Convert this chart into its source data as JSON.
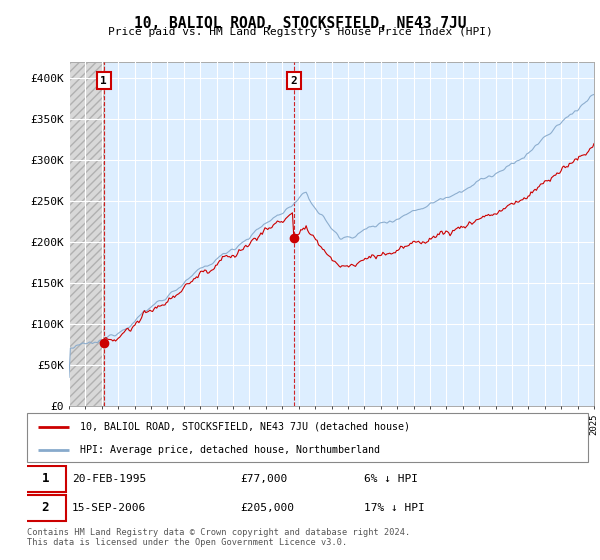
{
  "title": "10, BALIOL ROAD, STOCKSFIELD, NE43 7JU",
  "subtitle": "Price paid vs. HM Land Registry's House Price Index (HPI)",
  "ylim": [
    0,
    420000
  ],
  "yticks": [
    0,
    50000,
    100000,
    150000,
    200000,
    250000,
    300000,
    350000,
    400000
  ],
  "ytick_labels": [
    "£0",
    "£50K",
    "£100K",
    "£150K",
    "£200K",
    "£250K",
    "£300K",
    "£350K",
    "£400K"
  ],
  "sale1_price": 77000,
  "sale1_date_str": "20-FEB-1995",
  "sale1_price_str": "£77,000",
  "sale1_hpi_str": "6% ↓ HPI",
  "sale2_price": 205000,
  "sale2_date_str": "15-SEP-2006",
  "sale2_price_str": "£205,000",
  "sale2_hpi_str": "17% ↓ HPI",
  "property_color": "#cc0000",
  "hpi_color": "#88aacc",
  "legend_property": "10, BALIOL ROAD, STOCKSFIELD, NE43 7JU (detached house)",
  "legend_hpi": "HPI: Average price, detached house, Northumberland",
  "footer": "Contains HM Land Registry data © Crown copyright and database right 2024.\nThis data is licensed under the Open Government Licence v3.0.",
  "bg_color": "#ddeeff",
  "hatch_bg": "#d8d8d8"
}
